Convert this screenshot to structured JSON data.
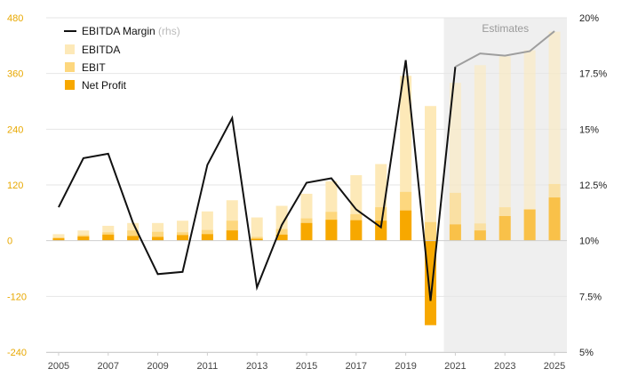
{
  "chart_data": {
    "type": "bar",
    "categories": [
      "2005",
      "2006",
      "2007",
      "2008",
      "2009",
      "2010",
      "2011",
      "2012",
      "2013",
      "2014",
      "2015",
      "2016",
      "2017",
      "2018",
      "2019",
      "2020",
      "2021",
      "2022",
      "2023",
      "2024",
      "2025"
    ],
    "x_tick_labels": [
      "2005",
      "2007",
      "2009",
      "2011",
      "2013",
      "2015",
      "2017",
      "2019",
      "2021",
      "2023",
      "2025"
    ],
    "series": [
      {
        "name": "EBITDA",
        "kind": "bar",
        "color": "#fde9b8",
        "values": [
          14,
          22,
          32,
          38,
          38,
          43,
          63,
          87,
          50,
          75,
          101,
          128,
          141,
          165,
          355,
          290,
          340,
          378,
          397,
          410,
          450
        ]
      },
      {
        "name": "EBIT",
        "kind": "bar",
        "color": "#fdd77e",
        "values": [
          7,
          12,
          18,
          22,
          19,
          18,
          23,
          43,
          8,
          25,
          48,
          62,
          57,
          72,
          105,
          40,
          103,
          37,
          72,
          68,
          122
        ]
      },
      {
        "name": "Net Profit",
        "kind": "bar",
        "color": "#f7a800",
        "values": [
          5,
          9,
          13,
          10,
          8,
          12,
          14,
          22,
          4,
          13,
          38,
          45,
          44,
          43,
          65,
          -182,
          35,
          22,
          53,
          67,
          93
        ]
      },
      {
        "name": "EBITDA Margin",
        "kind": "line",
        "axis": "right",
        "color": "#111111",
        "estimate_color": "#9e9e9e",
        "values": [
          11.5,
          13.7,
          13.9,
          10.8,
          8.5,
          8.6,
          13.4,
          15.5,
          7.9,
          10.7,
          12.6,
          12.8,
          11.4,
          10.6,
          18.1,
          7.3,
          17.8,
          18.4,
          18.3,
          18.5,
          19.4
        ]
      }
    ],
    "estimate_start_index": 16,
    "ylim": [
      -240,
      480
    ],
    "yticks": [
      "480",
      "360",
      "240",
      "120",
      "0",
      "-120",
      "-240"
    ],
    "y2lim": [
      5,
      20
    ],
    "y2ticks": [
      "20%",
      "17.5%",
      "15%",
      "12.5%",
      "10%",
      "7.5%",
      "5%"
    ],
    "legend": {
      "position": "top-left",
      "items": [
        "EBITDA Margin",
        "EBITDA",
        "EBIT",
        "Net Profit"
      ],
      "rhs_note": "(rhs)"
    },
    "estimates_label": "Estimates",
    "grid": true
  }
}
